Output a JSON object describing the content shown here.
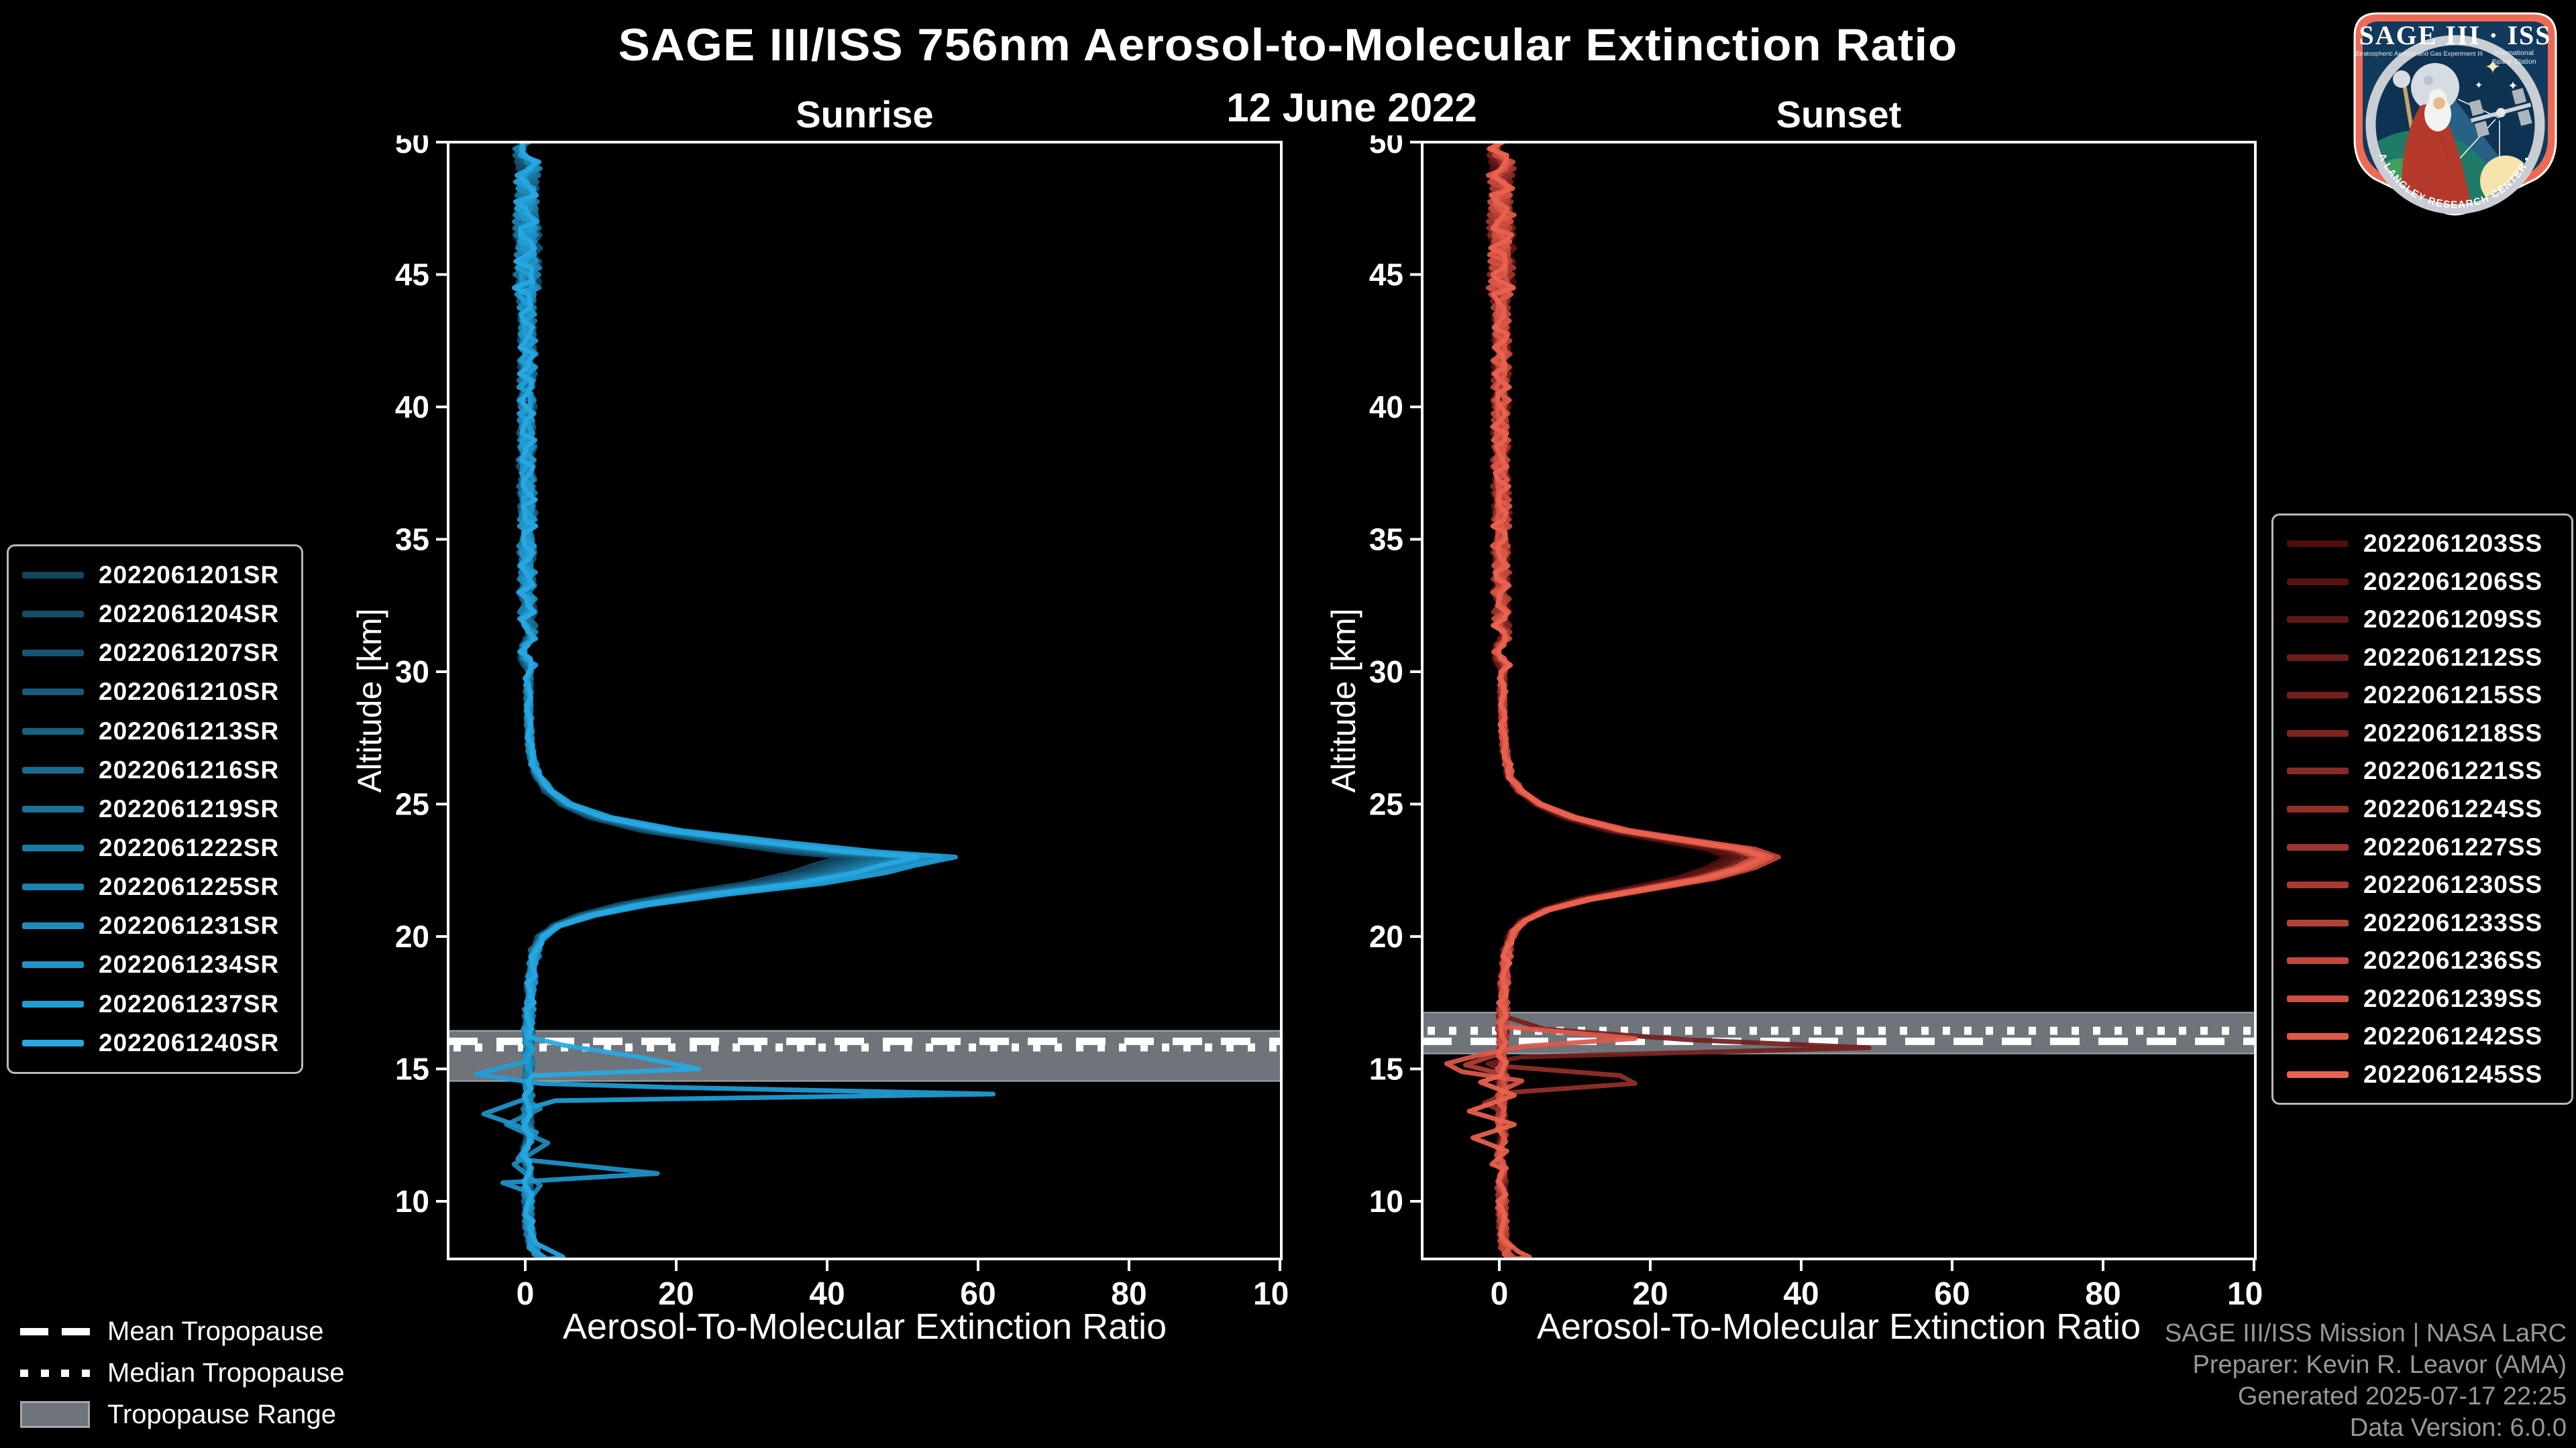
{
  "title": "SAGE III/ISS 756nm Aerosol-to-Molecular Extinction Ratio",
  "date": "12 June 2022",
  "styles": {
    "background": "#000000",
    "band_color": "#6e747a",
    "band_edge": "#a3a8ad",
    "tropopause_line_color": "#ffffff",
    "text_color": "#ffffff",
    "muted_text_color": "#979797",
    "legend_border_color": "#b9b9b9",
    "logo_border_color": "#ee6a55",
    "logo_field_color": "#113a5c"
  },
  "tropo_legend": {
    "mean": "Mean Tropopause",
    "median": "Median Tropopause",
    "range": "Tropopause Range"
  },
  "footer": {
    "lines": [
      "SAGE III/ISS Mission | NASA LaRC",
      "Preparer: Kevin R. Leavor (AMA)",
      "Generated 2025-07-17 22:25",
      "Data Version: 6.0.0"
    ]
  },
  "logo": {
    "title": "SAGE III · ISS",
    "subtitle_left": "Stratospheric Aerosol and Gas Experiment III",
    "subtitle_right_1": "International",
    "subtitle_right_2": "Space Station",
    "ring_text": "BALL • NASA LANGLEY RESEARCH CENTER • TAS-I • ESA"
  },
  "chart_data": [
    {
      "type": "line",
      "title": "Sunrise",
      "xlabel": "Aerosol-To-Molecular Extinction Ratio",
      "ylabel": "Altitude [km]",
      "xlim": [
        -10.2,
        100.2
      ],
      "ylim": [
        7.8,
        50
      ],
      "xticks": [
        0,
        20,
        40,
        60,
        80,
        100
      ],
      "yticks": [
        10,
        15,
        20,
        25,
        30,
        35,
        40,
        45,
        50
      ],
      "grid": false,
      "legend_position": "outside-left",
      "tropopause": {
        "range": [
          14.54,
          16.44
        ],
        "mean": 16.04,
        "median": 15.81
      },
      "peak_ref": 55,
      "base_profile": {
        "alt": [
          50,
          48,
          46,
          44,
          42,
          40,
          38,
          36,
          34,
          32,
          30,
          28,
          27,
          26.5,
          26,
          25.5,
          25,
          24.5,
          24,
          23.6,
          23.2,
          23,
          22.7,
          22.4,
          22,
          21.6,
          21.2,
          20.8,
          20.4,
          20,
          19.5,
          19,
          18,
          17,
          16.5,
          16,
          15.5,
          15,
          14.5,
          14,
          13.5,
          13,
          12.5,
          12,
          11.5,
          11,
          10.5,
          10,
          9.5,
          9,
          8.5,
          8,
          7.8
        ],
        "value": [
          0.3,
          0.2,
          0.3,
          0.2,
          0.3,
          0.2,
          0.2,
          0.3,
          0.2,
          0.3,
          0.4,
          0.5,
          0.8,
          1.2,
          2,
          3.5,
          6,
          11,
          20,
          32,
          45,
          55,
          50,
          46,
          38,
          26,
          16,
          9,
          4.5,
          2.5,
          1.5,
          1,
          0.7,
          0.5,
          0.4,
          0.4,
          0.5,
          0.4,
          0.4,
          0.4,
          0.3,
          0.3,
          0.3,
          0.3,
          0.3,
          0.3,
          0.3,
          0.4,
          0.4,
          0.5,
          0.8,
          1.5,
          2.5
        ]
      },
      "series": [
        {
          "id": "2022061201SR",
          "color": "#14455f",
          "peak": 42
        },
        {
          "id": "2022061204SR",
          "color": "#154c68",
          "peak": 44
        },
        {
          "id": "2022061207SR",
          "color": "#165371",
          "peak": 45
        },
        {
          "id": "2022061210SR",
          "color": "#175a7a",
          "peak": 46
        },
        {
          "id": "2022061213SR",
          "color": "#186284",
          "peak": 47
        },
        {
          "id": "2022061216SR",
          "color": "#196a8e",
          "peak": 48
        },
        {
          "id": "2022061219SR",
          "color": "#1a7299",
          "peak": 49
        },
        {
          "id": "2022061222SR",
          "color": "#1b7aa4",
          "peak": 50
        },
        {
          "id": "2022061225SR",
          "color": "#1c83b0",
          "peak": 51
        },
        {
          "id": "2022061231SR",
          "color": "#1d8cbc",
          "peak": 53,
          "anomalies": [
            [
              [
                13.5,
                2
              ],
              [
                12.9,
                -2.5
              ],
              [
                12.2,
                3
              ],
              [
                11.4,
                -1.5
              ],
              [
                10.6,
                2
              ],
              [
                10,
                0.4
              ]
            ]
          ]
        },
        {
          "id": "2022061234SR",
          "color": "#1e95c9",
          "peak": 55,
          "anomalies": [
            [
              [
                13.9,
                0.3
              ],
              [
                13.3,
                -5.5
              ],
              [
                12.6,
                1.5
              ],
              [
                11.6,
                -1
              ],
              [
                11.05,
                17.5
              ],
              [
                10.7,
                -3
              ],
              [
                10.3,
                1
              ]
            ]
          ]
        },
        {
          "id": "2022061237SR",
          "color": "#1f9ed6",
          "peak": 57,
          "anomalies": [
            [
              [
                15.3,
                0.3
              ],
              [
                14.8,
                -6.5
              ],
              [
                14.45,
                2
              ],
              [
                14.3,
                20
              ],
              [
                14.05,
                62
              ],
              [
                13.8,
                4
              ],
              [
                13.5,
                0.3
              ]
            ]
          ]
        },
        {
          "id": "2022061240SR",
          "color": "#28a8e2",
          "peak": 52,
          "anomalies": [
            [
              [
                16.2,
                0.5
              ],
              [
                15.9,
                5
              ],
              [
                15.45,
                15
              ],
              [
                15.0,
                23
              ],
              [
                14.75,
                1
              ],
              [
                14.5,
                0.3
              ]
            ],
            [
              [
                9.0,
                0.5
              ],
              [
                8.4,
                1.5
              ],
              [
                7.9,
                5
              ]
            ]
          ]
        }
      ]
    },
    {
      "type": "line",
      "title": "Sunset",
      "xlabel": "Aerosol-To-Molecular Extinction Ratio",
      "ylabel": "Altitude [km]",
      "xlim": [
        -10.2,
        100.2
      ],
      "ylim": [
        7.8,
        50
      ],
      "xticks": [
        0,
        20,
        40,
        60,
        80,
        100
      ],
      "yticks": [
        10,
        15,
        20,
        25,
        30,
        35,
        40,
        45,
        50
      ],
      "grid": false,
      "legend_position": "outside-right",
      "tropopause": {
        "range": [
          15.58,
          17.13
        ],
        "mean": 16.04,
        "median": 16.44
      },
      "peak_ref": 36,
      "base_profile": {
        "alt": [
          50,
          48,
          46,
          44,
          42,
          40,
          38,
          36,
          34,
          32,
          30,
          28,
          27,
          26,
          25.5,
          25,
          24.5,
          24,
          23.6,
          23.3,
          23,
          22.6,
          22.2,
          21.8,
          21.4,
          21,
          20.6,
          20.2,
          19.6,
          19,
          18,
          17,
          16.5,
          16,
          15.5,
          15,
          14.5,
          14,
          13.5,
          13,
          12.5,
          12,
          11.5,
          11,
          10.5,
          10,
          9.5,
          9,
          8.5,
          8,
          7.8
        ],
        "value": [
          0.3,
          0.2,
          0.3,
          0.2,
          0.3,
          0.2,
          0.2,
          0.3,
          0.2,
          0.3,
          0.4,
          0.5,
          0.8,
          1.5,
          3,
          5.5,
          10,
          17,
          26,
          33,
          36,
          33,
          28,
          20,
          12,
          6.5,
          3.5,
          2,
          1.2,
          0.8,
          0.6,
          0.5,
          0.4,
          0.4,
          0.4,
          0.4,
          0.4,
          0.4,
          0.3,
          0.3,
          0.3,
          0.3,
          0.3,
          0.3,
          0.3,
          0.4,
          0.4,
          0.5,
          0.6,
          1,
          1.8
        ]
      },
      "series": [
        {
          "id": "2022061203SS",
          "color": "#4c0e0e",
          "peak": 30
        },
        {
          "id": "2022061206SS",
          "color": "#561312",
          "peak": 31
        },
        {
          "id": "2022061209SS",
          "color": "#601816",
          "peak": 32
        },
        {
          "id": "2022061212SS",
          "color": "#6a1d1a",
          "peak": 33
        },
        {
          "id": "2022061215SS",
          "color": "#741f1e",
          "peak": 34,
          "anomalies": [
            [
              [
                17.0,
                0.5
              ],
              [
                16.5,
                6
              ],
              [
                16.1,
                25
              ],
              [
                15.8,
                49
              ],
              [
                15.45,
                3
              ],
              [
                15.2,
                -1.5
              ],
              [
                14.95,
                0.5
              ]
            ]
          ]
        },
        {
          "id": "2022061218SS",
          "color": "#7e2421",
          "peak": 33
        },
        {
          "id": "2022061221SS",
          "color": "#882a25",
          "peak": 35
        },
        {
          "id": "2022061224SS",
          "color": "#923029",
          "peak": 36,
          "anomalies": [
            [
              [
                15.1,
                0.5
              ],
              [
                14.75,
                16
              ],
              [
                14.45,
                18
              ],
              [
                14.1,
                1
              ],
              [
                13.7,
                -2
              ],
              [
                13.4,
                0.5
              ]
            ]
          ]
        },
        {
          "id": "2022061227SS",
          "color": "#9c352d",
          "peak": 34
        },
        {
          "id": "2022061230SS",
          "color": "#a73b31",
          "peak": 35
        },
        {
          "id": "2022061233SS",
          "color": "#b34136",
          "peak": 36,
          "anomalies": [
            [
              [
                15.6,
                0.3
              ],
              [
                15.15,
                -4.5
              ],
              [
                14.8,
                0.5
              ]
            ]
          ]
        },
        {
          "id": "2022061236SS",
          "color": "#c1483b",
          "peak": 37
        },
        {
          "id": "2022061239SS",
          "color": "#cf4f40",
          "peak": 34
        },
        {
          "id": "2022061242SS",
          "color": "#dd5848",
          "peak": 36,
          "anomalies": [
            [
              [
                16.6,
                0.5
              ],
              [
                16.15,
                18
              ],
              [
                15.85,
                3
              ],
              [
                15.5,
                -3
              ],
              [
                15.2,
                -7
              ],
              [
                14.9,
                -5
              ],
              [
                14.55,
                3
              ],
              [
                14.2,
                0.5
              ]
            ]
          ]
        },
        {
          "id": "2022061245SS",
          "color": "#ea6350",
          "peak": 35,
          "anomalies": [
            [
              [
                14.5,
                -2.5
              ],
              [
                14.0,
                2
              ],
              [
                13.4,
                -4
              ],
              [
                12.9,
                2
              ],
              [
                12.4,
                -3.5
              ],
              [
                11.9,
                1
              ],
              [
                11.4,
                -1
              ]
            ],
            [
              [
                8.6,
                0.5
              ],
              [
                8.1,
                2.5
              ],
              [
                7.9,
                4
              ]
            ]
          ]
        }
      ]
    }
  ]
}
